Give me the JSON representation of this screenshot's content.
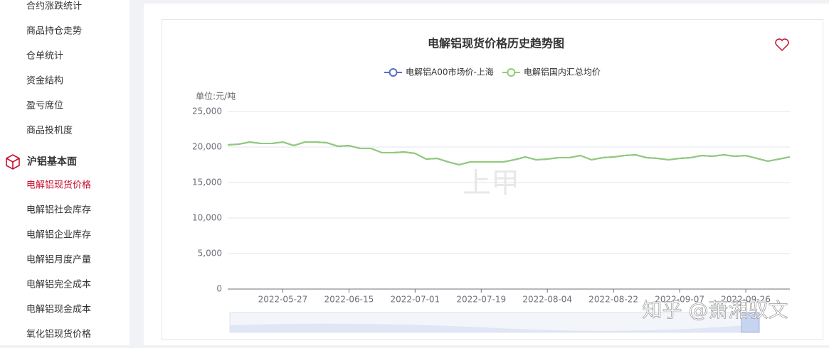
{
  "sidebar": {
    "items": [
      "合约涨跌统计",
      "商品持仓走势",
      "仓单统计",
      "资金结构",
      "盈亏席位",
      "商品投机度"
    ],
    "section": "沪铝基本面",
    "sub_items": [
      "电解铝现货价格",
      "电解铝社会库存",
      "电解铝企业库存",
      "电解铝月度产量",
      "电解铝完全成本",
      "电解铝现金成本",
      "氧化铝现货价格"
    ]
  },
  "watermark": "上甲",
  "overlay": "知乎 @萧湘驭文",
  "chart_data": {
    "type": "line",
    "title": "电解铝现货价格历史趋势图",
    "y_label": "单位:元/吨",
    "categories": [
      null,
      null,
      null,
      null,
      null,
      "2022-05-27",
      null,
      null,
      null,
      null,
      null,
      "2022-06-15",
      null,
      null,
      null,
      null,
      null,
      "2022-07-01",
      null,
      null,
      null,
      null,
      null,
      "2022-07-19",
      null,
      null,
      null,
      null,
      null,
      "2022-08-04",
      null,
      null,
      null,
      null,
      null,
      "2022-08-22",
      null,
      null,
      null,
      null,
      null,
      "2022-09-07",
      null,
      null,
      null,
      null,
      null,
      "2022-09-26",
      null,
      null,
      null,
      null
    ],
    "series": [
      {
        "name": "电解铝A00市场价-上海",
        "color": "#5470c6",
        "values": [
          20300,
          20400,
          20700,
          20500,
          20500,
          20700,
          20200,
          20700,
          20700,
          20600,
          20100,
          20200,
          19800,
          19800,
          19200,
          19200,
          19300,
          19100,
          18300,
          18400,
          17900,
          17500,
          17900,
          17900,
          17900,
          17900,
          18200,
          18600,
          18200,
          18300,
          18500,
          18500,
          18800,
          18200,
          18500,
          18600,
          18800,
          18900,
          18500,
          18400,
          18200,
          18400,
          18500,
          18800,
          18700,
          18900,
          18700,
          18800,
          18400,
          18000,
          18300,
          18600
        ]
      },
      {
        "name": "电解铝国内汇总均价",
        "color": "#91cc75",
        "values": [
          20300,
          20400,
          20700,
          20500,
          20500,
          20700,
          20200,
          20700,
          20700,
          20600,
          20100,
          20200,
          19800,
          19800,
          19200,
          19200,
          19300,
          19100,
          18300,
          18400,
          17900,
          17500,
          17900,
          17900,
          17900,
          17900,
          18200,
          18600,
          18200,
          18300,
          18500,
          18500,
          18800,
          18200,
          18500,
          18600,
          18800,
          18900,
          18500,
          18400,
          18200,
          18400,
          18500,
          18800,
          18700,
          18900,
          18700,
          18800,
          18400,
          18000,
          18300,
          18600
        ]
      }
    ],
    "ylim": [
      0,
      25000
    ],
    "yticks": [
      0,
      {
        "value": 5000,
        "label": "5,000"
      },
      {
        "value": 10000,
        "label": "10,000"
      },
      {
        "value": 15000,
        "label": "15,000"
      },
      {
        "value": 20000,
        "label": "20,000"
      },
      {
        "value": 25000,
        "label": "25,000"
      }
    ],
    "grid": true
  }
}
